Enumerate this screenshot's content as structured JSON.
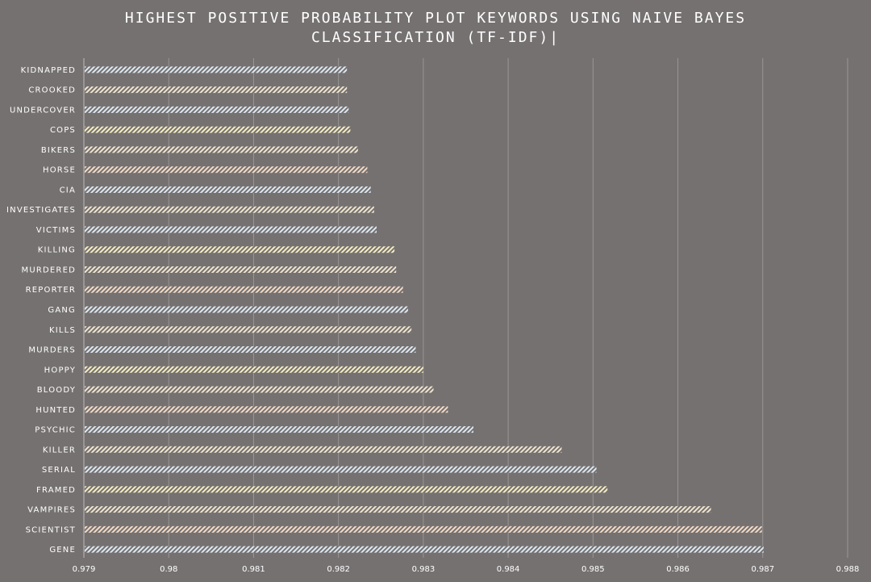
{
  "colors": {
    "background": "#767171",
    "text": "#ffffff",
    "gridline": "#9a9696",
    "bar_stripe_palette": [
      "#dce9f2",
      "#efe6cf",
      "#f4eec2",
      "#f3dcc7"
    ]
  },
  "chart_data": {
    "type": "bar",
    "orientation": "horizontal",
    "title_lines": [
      "HIGHEST POSITIVE PROBABILITY PLOT KEYWORDS USING NAIVE BAYES",
      "CLASSIFICATION (TF-IDF)|"
    ],
    "xlabel": "",
    "ylabel": "",
    "xlim": [
      0.979,
      0.988
    ],
    "xticks": [
      "0.979",
      "0.98",
      "0.981",
      "0.982",
      "0.983",
      "0.984",
      "0.985",
      "0.986",
      "0.987",
      "0.988"
    ],
    "grid": true,
    "legend": "none",
    "categories": [
      "KIDNAPPED",
      "CROOKED",
      "UNDERCOVER",
      "COPS",
      "BIKERS",
      "HORSE",
      "CIA",
      "INVESTIGATES",
      "VICTIMS",
      "KILLING",
      "MURDERED",
      "REPORTER",
      "GANG",
      "KILLS",
      "MURDERS",
      "HOPPY",
      "BLOODY",
      "HUNTED",
      "PSYCHIC",
      "KILLER",
      "SERIAL",
      "FRAMED",
      "VAMPIRES",
      "SCIENTIST",
      "GENE"
    ],
    "values": [
      0.9821,
      0.9821,
      0.98212,
      0.98214,
      0.98223,
      0.98234,
      0.98238,
      0.98242,
      0.98245,
      0.98266,
      0.98268,
      0.98276,
      0.98282,
      0.98286,
      0.98291,
      0.983,
      0.98312,
      0.98329,
      0.98359,
      0.98463,
      0.98504,
      0.98517,
      0.98639,
      0.98699,
      0.98701
    ],
    "bar_colors": [
      "#dce9f2",
      "#efe6cf",
      "#dce9f2",
      "#f4eec2",
      "#efe6cf",
      "#f3dcc7",
      "#dce9f2",
      "#efe6cf",
      "#dce9f2",
      "#f4eec2",
      "#efe6cf",
      "#f3dcc7",
      "#dce9f2",
      "#efe6cf",
      "#dce9f2",
      "#f4eec2",
      "#efe6cf",
      "#f3dcc7",
      "#dce9f2",
      "#efe6cf",
      "#dce9f2",
      "#f4eec2",
      "#efe6cf",
      "#f3dcc7",
      "#dce9f2"
    ]
  }
}
